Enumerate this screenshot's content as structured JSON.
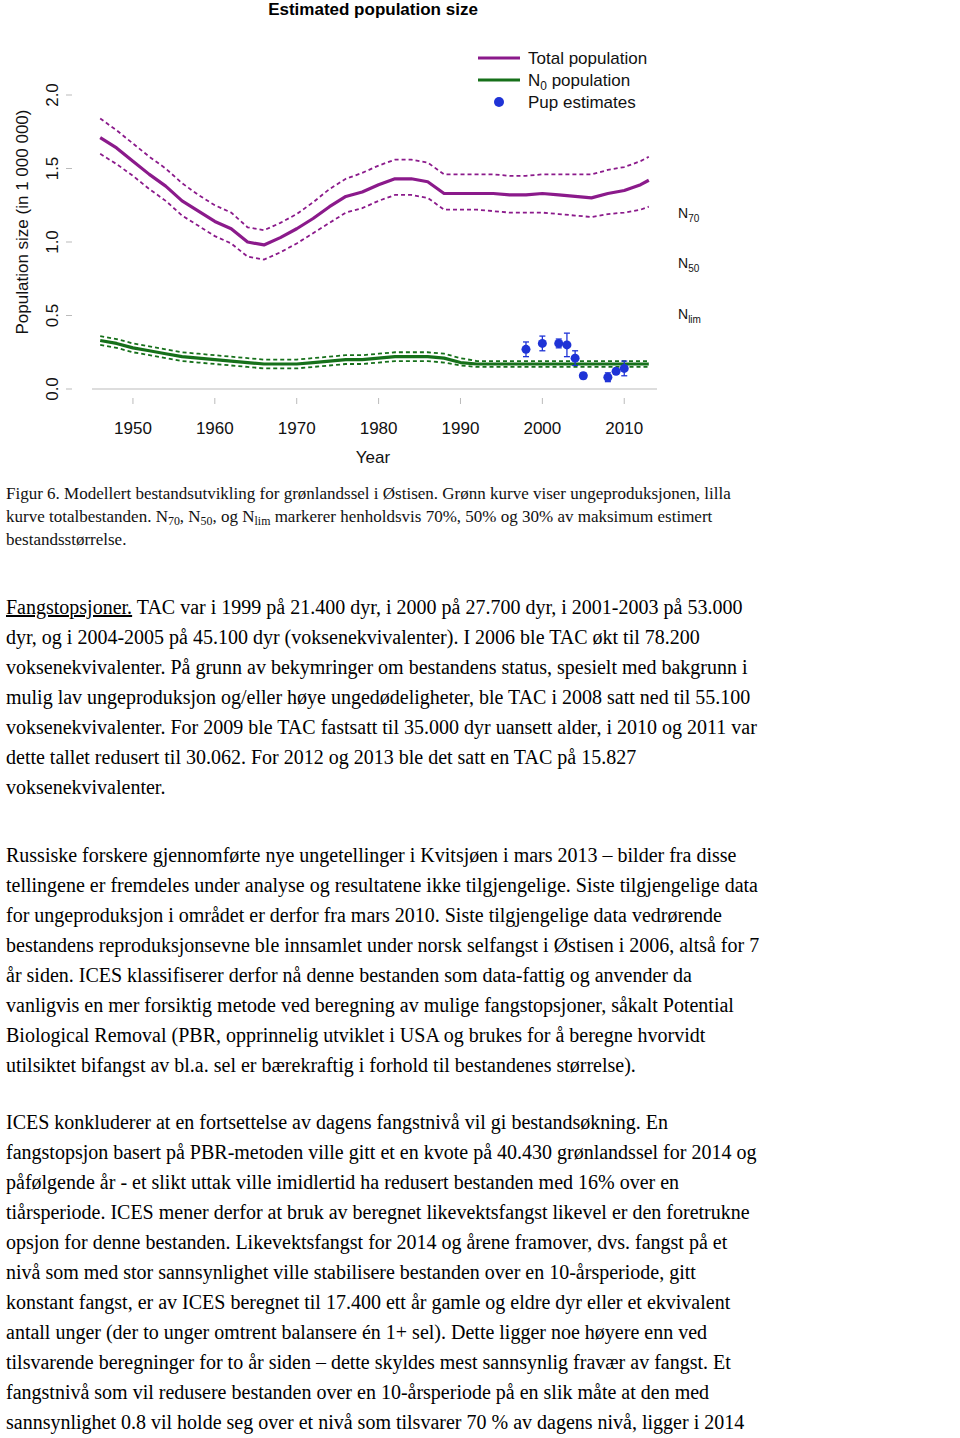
{
  "chart_data": {
    "type": "line",
    "title": "Estimated population size",
    "x_label": "Year",
    "y_label": "Population size (in 1 000 000)",
    "xlim": [
      1945,
      2014
    ],
    "ylim": [
      0,
      2
    ],
    "xticks": [
      1950,
      1960,
      1970,
      1980,
      1990,
      2000,
      2010
    ],
    "yticks": [
      {
        "value": 0,
        "label": "0.0"
      },
      {
        "value": 0.5,
        "label": "0.5"
      },
      {
        "value": 1,
        "label": "1.0"
      },
      {
        "value": 1.5,
        "label": "1.5"
      },
      {
        "value": 2,
        "label": "2.0"
      }
    ],
    "grid": false,
    "legend": "top-right",
    "series": [
      {
        "name": "Total population",
        "color": "#8b1a8b",
        "line_style": "solid",
        "x": [
          1946,
          1948,
          1950,
          1952,
          1954,
          1956,
          1958,
          1960,
          1962,
          1964,
          1966,
          1968,
          1970,
          1972,
          1974,
          1976,
          1978,
          1980,
          1982,
          1984,
          1986,
          1988,
          1990,
          1992,
          1994,
          1996,
          1998,
          2000,
          2002,
          2004,
          2006,
          2008,
          2010,
          2012,
          2013
        ],
        "values": [
          1.71,
          1.64,
          1.55,
          1.46,
          1.38,
          1.28,
          1.21,
          1.14,
          1.09,
          1.0,
          0.98,
          1.03,
          1.09,
          1.16,
          1.24,
          1.31,
          1.34,
          1.39,
          1.43,
          1.43,
          1.41,
          1.33,
          1.33,
          1.33,
          1.33,
          1.32,
          1.32,
          1.33,
          1.32,
          1.31,
          1.3,
          1.33,
          1.35,
          1.39,
          1.42
        ],
        "upper": [
          1.84,
          1.76,
          1.67,
          1.58,
          1.5,
          1.4,
          1.32,
          1.25,
          1.2,
          1.1,
          1.08,
          1.13,
          1.19,
          1.27,
          1.36,
          1.43,
          1.47,
          1.52,
          1.56,
          1.56,
          1.54,
          1.46,
          1.46,
          1.46,
          1.46,
          1.45,
          1.45,
          1.46,
          1.46,
          1.46,
          1.46,
          1.49,
          1.51,
          1.55,
          1.58
        ],
        "lower": [
          1.6,
          1.53,
          1.45,
          1.36,
          1.28,
          1.18,
          1.11,
          1.04,
          0.99,
          0.9,
          0.88,
          0.93,
          0.99,
          1.06,
          1.13,
          1.2,
          1.23,
          1.28,
          1.32,
          1.32,
          1.3,
          1.22,
          1.22,
          1.22,
          1.21,
          1.2,
          1.2,
          1.2,
          1.19,
          1.18,
          1.17,
          1.19,
          1.2,
          1.22,
          1.24
        ]
      },
      {
        "name": [
          "N",
          {
            "sub": "0"
          },
          " population"
        ],
        "color": "#16701a",
        "line_style": "solid",
        "x": [
          1946,
          1948,
          1950,
          1952,
          1954,
          1956,
          1958,
          1960,
          1962,
          1964,
          1966,
          1968,
          1970,
          1972,
          1974,
          1976,
          1978,
          1980,
          1982,
          1984,
          1986,
          1988,
          1990,
          1992,
          1994,
          1996,
          1998,
          2000,
          2002,
          2004,
          2006,
          2008,
          2010,
          2012,
          2013
        ],
        "values": [
          0.33,
          0.31,
          0.28,
          0.26,
          0.24,
          0.22,
          0.21,
          0.2,
          0.19,
          0.18,
          0.17,
          0.17,
          0.17,
          0.18,
          0.19,
          0.2,
          0.2,
          0.21,
          0.22,
          0.22,
          0.22,
          0.21,
          0.18,
          0.17,
          0.17,
          0.17,
          0.17,
          0.17,
          0.17,
          0.17,
          0.17,
          0.17,
          0.17,
          0.17,
          0.17
        ],
        "upper": [
          0.36,
          0.34,
          0.31,
          0.29,
          0.27,
          0.25,
          0.24,
          0.23,
          0.22,
          0.21,
          0.2,
          0.2,
          0.2,
          0.21,
          0.22,
          0.23,
          0.23,
          0.24,
          0.25,
          0.25,
          0.25,
          0.24,
          0.21,
          0.19,
          0.19,
          0.19,
          0.19,
          0.19,
          0.19,
          0.19,
          0.19,
          0.19,
          0.19,
          0.19,
          0.19
        ],
        "lower": [
          0.3,
          0.28,
          0.25,
          0.23,
          0.21,
          0.19,
          0.18,
          0.17,
          0.16,
          0.15,
          0.14,
          0.14,
          0.14,
          0.15,
          0.16,
          0.17,
          0.17,
          0.18,
          0.19,
          0.19,
          0.19,
          0.18,
          0.16,
          0.15,
          0.15,
          0.15,
          0.15,
          0.15,
          0.15,
          0.15,
          0.15,
          0.15,
          0.15,
          0.15,
          0.15
        ]
      },
      {
        "name": "Pup estimates",
        "type": "scatter",
        "marker": "circle",
        "color": "#1f33d6",
        "x": [
          1998,
          2000,
          2002,
          2003,
          2004,
          2005,
          2008,
          2009,
          2010
        ],
        "values": [
          0.27,
          0.31,
          0.31,
          0.3,
          0.21,
          0.09,
          0.08,
          0.12,
          0.14
        ],
        "errors": [
          0.05,
          0.05,
          0.03,
          0.08,
          0.05,
          0.02,
          0.03,
          0.02,
          0.05
        ]
      }
    ],
    "annotations": [
      {
        "text": "N",
        "sub": "70",
        "value": 1.2
      },
      {
        "text": "N",
        "sub": "50",
        "value": 0.86
      },
      {
        "text": "N",
        "sub": "lim",
        "value": 0.51
      }
    ]
  },
  "caption": {
    "lines": [
      "Figur 6. Modellert bestandsutvikling for grønlandssel i Østisen. Grønn kurve viser ungeproduksjonen, lilla",
      [
        "kurve totalbestanden. N",
        {
          "sub": "70"
        },
        ", N",
        {
          "sub": "50"
        },
        ", og N",
        {
          "sub": "lim"
        },
        " markerer henholdsvis 70%, 50% og 30% av maksimum estimert"
      ],
      "bestandsstørrelse."
    ]
  },
  "paragraphs": [
    {
      "lines": [
        [
          {
            "u": "Fangstopsjoner."
          },
          " TAC var i 1999 på 21.400 dyr, i 2000 på 27.700 dyr, i 2001-2003 på 53.000"
        ],
        "dyr, og i 2004-2005 på 45.100 dyr (voksenekvivalenter). I 2006 ble TAC økt til 78.200",
        "voksenekvivalenter. På grunn av bekymringer om bestandens status, spesielt med bakgrunn i",
        "mulig lav ungeproduksjon og/eller høye ungedødeligheter, ble TAC i 2008 satt ned til 55.100",
        "voksenekvivalenter. For 2009 ble TAC fastsatt til 35.000 dyr uansett alder, i 2010 og 2011 var",
        "dette tallet redusert til 30.062. For 2012 og 2013 ble det satt en TAC på 15.827",
        "voksenekvivalenter."
      ]
    },
    {
      "lines": [
        "Russiske forskere gjennomførte nye ungetellinger i Kvitsjøen i mars 2013 – bilder fra disse",
        "tellingene er fremdeles under analyse og resultatene ikke tilgjengelige. Siste tilgjengelige data",
        "for ungeproduksjon i området er derfor fra mars 2010. Siste tilgjengelige data vedrørende",
        "bestandens reproduksjonsevne ble innsamlet under norsk selfangst i Østisen i 2006, altså for 7",
        "år siden. ICES klassifiserer derfor nå denne bestanden som data-fattig og anvender da",
        "vanligvis en mer forsiktig metode ved beregning av mulige fangstopsjoner, såkalt Potential",
        "Biological Removal (PBR, opprinnelig utviklet i USA og brukes for å beregne hvorvidt",
        "utilsiktet bifangst av bl.a. sel er bærekraftig i forhold til bestandenes størrelse)."
      ]
    },
    {
      "lines": [
        "ICES konkluderer at en fortsettelse av dagens fangstnivå vil gi bestandsøkning. En",
        "fangstopsjon basert på PBR-metoden ville gitt et en kvote på 40.430 grønlandssel for 2014 og",
        "påfølgende år - et slikt uttak ville imidlertid ha redusert bestanden med 16% over en",
        "tiårsperiode. ICES mener derfor at bruk av beregnet likevektsfangst likevel er den foretrukne",
        "opsjon for denne bestanden. Likevektsfangst for 2014 og årene framover, dvs. fangst på et",
        "nivå som med stor sannsynlighet ville stabilisere bestanden over en 10-årsperiode, gitt",
        "konstant fangst, er av ICES beregnet til 17.400 ett år gamle og eldre dyr eller et ekvivalent",
        "antall unger (der to unger omtrent balansere én 1+ sel). Dette ligger noe høyere enn ved",
        "tilsvarende beregninger for to år siden – dette skyldes mest sannsynlig fravær av fangst. Et",
        "fangstnivå som vil redusere bestanden over en 10-årsperiode på en slik måte at den med",
        "sannsynlighet 0.8 vil holde seg over et nivå som tilsvarer 70 % av dagens nivå, ligger i 2014"
      ]
    }
  ]
}
